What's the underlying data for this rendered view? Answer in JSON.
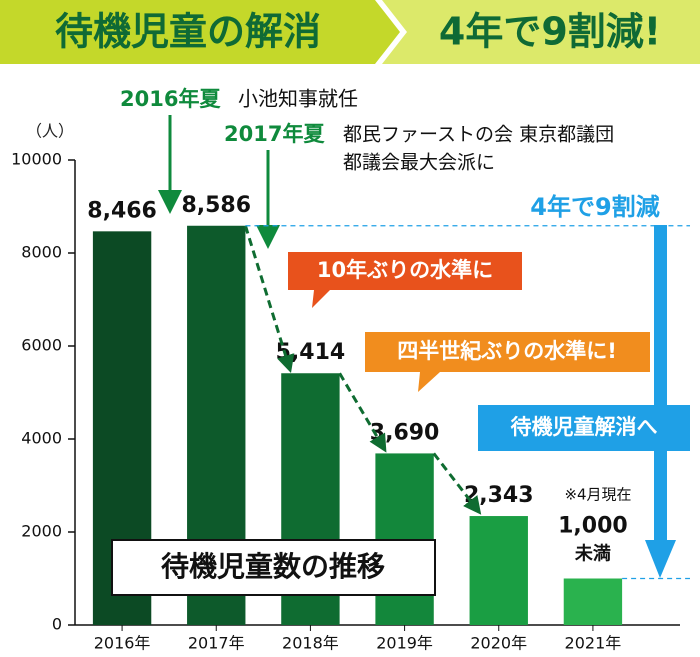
{
  "chart_data": {
    "type": "bar",
    "title": "待機児童の解消",
    "subtitle": "4年で9割減!",
    "y_label": "（人）",
    "inset_title": "待機児童数の推移",
    "categories": [
      "2016年",
      "2017年",
      "2018年",
      "2019年",
      "2020年",
      "2021年"
    ],
    "values": [
      8466,
      8586,
      5414,
      3690,
      2343,
      1000
    ],
    "value_labels": [
      "8,466",
      "8,586",
      "5,414",
      "3,690",
      "2,343",
      "1,000"
    ],
    "colors": [
      "#0c4a24",
      "#0d5a2b",
      "#0f6c31",
      "#13873b",
      "#1a9e43",
      "#2ab24e"
    ],
    "ylim": [
      0,
      10000
    ],
    "yticks": [
      0,
      2000,
      4000,
      6000,
      8000,
      10000
    ],
    "annotations": [
      "2016年夏",
      "小池知事就任",
      "2017年夏",
      "都民ファーストの会 東京都議団",
      "都議会最大会派に",
      "10年ぶりの水準に",
      "四半世紀ぶりの水準に!",
      "4年で9割減",
      "待機児童解消へ",
      "※4月現在",
      "未満"
    ]
  }
}
